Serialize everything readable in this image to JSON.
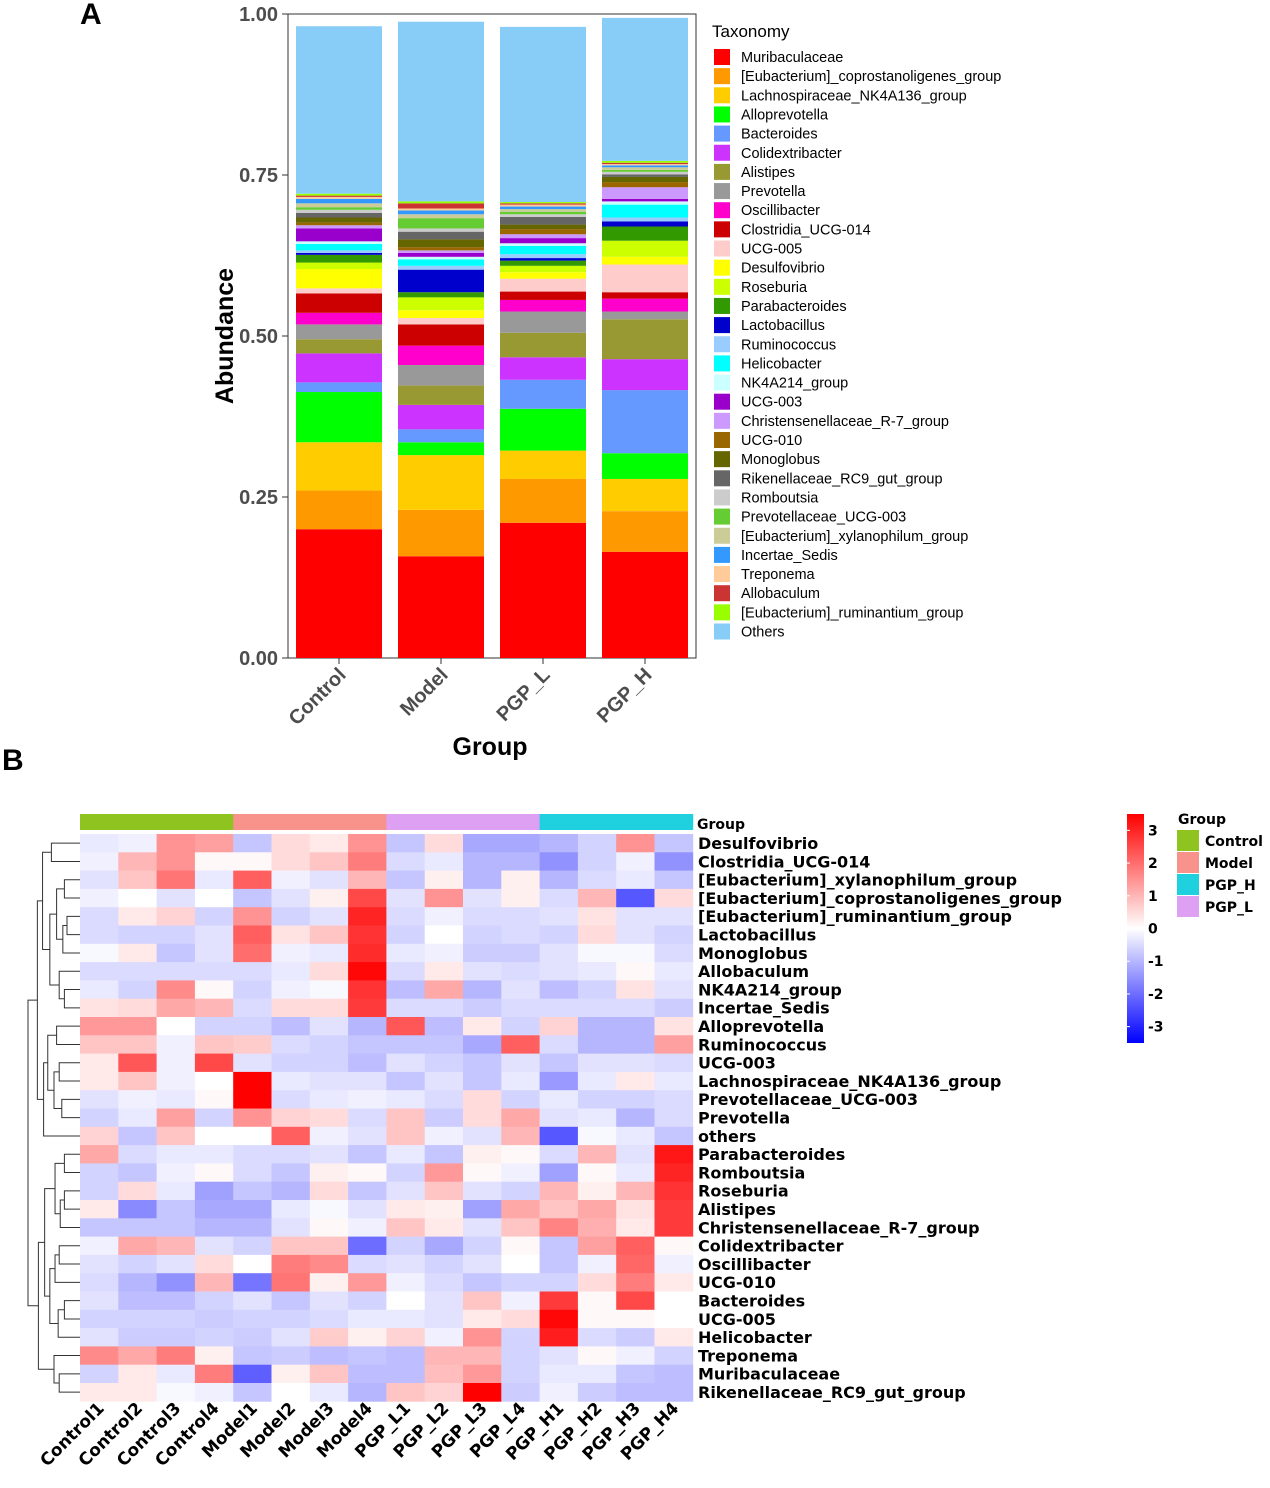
{
  "chart_data": [
    {
      "panel": "A",
      "type": "bar",
      "stacked": true,
      "xlabel": "Group",
      "ylabel": "Abundance",
      "ylim": [
        0,
        1
      ],
      "yticks": [
        "0.00",
        "0.25",
        "0.50",
        "0.75",
        "1.00"
      ],
      "categories": [
        "Control",
        "Model",
        "PGP_L",
        "PGP_H"
      ],
      "legend_title": "Taxonomy",
      "legend_position": "right",
      "series": [
        {
          "name": "Muribaculaceae",
          "color": "#FF0000",
          "values": [
            0.2,
            0.158,
            0.21,
            0.165
          ]
        },
        {
          "name": "[Eubacterium]_coprostanoligenes_group",
          "color": "#FF9900",
          "values": [
            0.06,
            0.072,
            0.068,
            0.063
          ]
        },
        {
          "name": "Lachnospiraceae_NK4A136_group",
          "color": "#FFCC00",
          "values": [
            0.075,
            0.085,
            0.044,
            0.05
          ]
        },
        {
          "name": "Alloprevotella",
          "color": "#00FF00",
          "values": [
            0.078,
            0.02,
            0.065,
            0.04
          ]
        },
        {
          "name": "Bacteroides",
          "color": "#6699FF",
          "values": [
            0.015,
            0.02,
            0.045,
            0.098
          ]
        },
        {
          "name": "Colidextribacter",
          "color": "#CC33FF",
          "values": [
            0.045,
            0.038,
            0.035,
            0.048
          ]
        },
        {
          "name": "Alistipes",
          "color": "#999933",
          "values": [
            0.022,
            0.03,
            0.038,
            0.062
          ]
        },
        {
          "name": "Prevotella",
          "color": "#999999",
          "values": [
            0.023,
            0.032,
            0.033,
            0.012
          ]
        },
        {
          "name": "Oscillibacter",
          "color": "#FF00CC",
          "values": [
            0.018,
            0.03,
            0.018,
            0.02
          ]
        },
        {
          "name": "Clostridia_UCG-014",
          "color": "#CC0000",
          "values": [
            0.03,
            0.033,
            0.013,
            0.01
          ]
        },
        {
          "name": "UCG-005",
          "color": "#FFCCCC",
          "values": [
            0.008,
            0.01,
            0.02,
            0.043
          ]
        },
        {
          "name": "Desulfovibrio",
          "color": "#FFFF00",
          "values": [
            0.03,
            0.012,
            0.01,
            0.012
          ]
        },
        {
          "name": "Roseburia",
          "color": "#CCFF00",
          "values": [
            0.01,
            0.02,
            0.01,
            0.025
          ]
        },
        {
          "name": "Parabacteroides",
          "color": "#339900",
          "values": [
            0.012,
            0.008,
            0.008,
            0.022
          ]
        },
        {
          "name": "Lactobacillus",
          "color": "#0000CC",
          "values": [
            0.003,
            0.035,
            0.004,
            0.008
          ]
        },
        {
          "name": "Ruminococcus",
          "color": "#99CCFF",
          "values": [
            0.004,
            0.006,
            0.006,
            0.006
          ]
        },
        {
          "name": "Helicobacter",
          "color": "#00FFFF",
          "values": [
            0.01,
            0.01,
            0.013,
            0.02
          ]
        },
        {
          "name": "NK4A214_group",
          "color": "#CCFFFF",
          "values": [
            0.004,
            0.004,
            0.004,
            0.005
          ]
        },
        {
          "name": "UCG-003",
          "color": "#9900CC",
          "values": [
            0.02,
            0.006,
            0.008,
            0.004
          ]
        },
        {
          "name": "Christensenellaceae_R-7_group",
          "color": "#CC99FF",
          "values": [
            0.005,
            0.004,
            0.006,
            0.018
          ]
        },
        {
          "name": "UCG-010",
          "color": "#996600",
          "values": [
            0.004,
            0.005,
            0.008,
            0.008
          ]
        },
        {
          "name": "Monoglobus",
          "color": "#666600",
          "values": [
            0.008,
            0.012,
            0.007,
            0.008
          ]
        },
        {
          "name": "Rikenellaceae_RC9_gut_group",
          "color": "#666666",
          "values": [
            0.007,
            0.012,
            0.012,
            0.004
          ]
        },
        {
          "name": "Romboutsia",
          "color": "#CCCCCC",
          "values": [
            0.005,
            0.005,
            0.004,
            0.004
          ]
        },
        {
          "name": "Prevotellaceae_UCG-003",
          "color": "#66CC33",
          "values": [
            0.004,
            0.016,
            0.004,
            0.003
          ]
        },
        {
          "name": "[Eubacterium]_xylanophilum_group",
          "color": "#CCCC99",
          "values": [
            0.006,
            0.006,
            0.004,
            0.004
          ]
        },
        {
          "name": "Incertae_Sedis",
          "color": "#3399FF",
          "values": [
            0.007,
            0.006,
            0.004,
            0.003
          ]
        },
        {
          "name": "Treponema",
          "color": "#FFCC99",
          "values": [
            0.003,
            0.003,
            0.003,
            0.002
          ]
        },
        {
          "name": "Allobaculum",
          "color": "#CC3333",
          "values": [
            0.002,
            0.008,
            0.002,
            0.002
          ]
        },
        {
          "name": "[Eubacterium]_ruminantium_group",
          "color": "#99FF00",
          "values": [
            0.003,
            0.003,
            0.002,
            0.003
          ]
        },
        {
          "name": "Others",
          "color": "#88CCF8",
          "values": [
            0.26,
            0.279,
            0.272,
            0.222
          ]
        }
      ]
    },
    {
      "panel": "B",
      "type": "heatmap",
      "columns": [
        "Control1",
        "Control2",
        "Control3",
        "Control4",
        "Model1",
        "Model2",
        "Model3",
        "Model4",
        "PGP_L1",
        "PGP_L2",
        "PGP_L3",
        "PGP_L4",
        "PGP_H1",
        "PGP_H2",
        "PGP_H3",
        "PGP_H4"
      ],
      "column_groups": [
        "Control",
        "Control",
        "Control",
        "Control",
        "Model",
        "Model",
        "Model",
        "Model",
        "PGP_L",
        "PGP_L",
        "PGP_L",
        "PGP_L",
        "PGP_H",
        "PGP_H",
        "PGP_H",
        "PGP_H"
      ],
      "group_annotation_label": "Group",
      "group_legend": {
        "title": "Group",
        "items": [
          {
            "name": "Control",
            "color": "#8FC31F"
          },
          {
            "name": "Model",
            "color": "#F8938B"
          },
          {
            "name": "PGP_H",
            "color": "#1FD1DE"
          },
          {
            "name": "PGP_L",
            "color": "#DDA0F2"
          }
        ]
      },
      "color_scale": {
        "min": -3.5,
        "max": 3.5,
        "ticks": [
          "3",
          "2",
          "1",
          "0",
          "-1",
          "-2",
          "-3"
        ],
        "low": "#0000FF",
        "mid": "#FFFFFF",
        "high": "#FF0000"
      },
      "rows": [
        {
          "name": "Desulfovibrio",
          "values": [
            -0.3,
            -0.2,
            1.5,
            1.3,
            -0.8,
            0.5,
            0.3,
            1.5,
            -0.8,
            0.5,
            -1.2,
            -1.2,
            -1.0,
            -0.6,
            1.5,
            -0.8
          ]
        },
        {
          "name": "Clostridia_UCG-014",
          "values": [
            -0.2,
            1.0,
            1.5,
            0.1,
            0.1,
            0.5,
            0.8,
            1.8,
            -0.5,
            -0.3,
            -1.0,
            -1.0,
            -1.5,
            -0.6,
            -0.2,
            -1.5
          ]
        },
        {
          "name": "[Eubacterium]_xylanophilum_group",
          "values": [
            -0.4,
            0.8,
            1.9,
            -0.3,
            2.2,
            -0.2,
            -0.4,
            1.0,
            -0.8,
            0.2,
            -1.0,
            0.2,
            -1.0,
            -0.5,
            -0.3,
            -0.8
          ]
        },
        {
          "name": "[Eubacterium]_coprostanoligenes_group",
          "values": [
            -0.2,
            0.0,
            -0.4,
            0.0,
            -0.8,
            -0.4,
            0.2,
            2.5,
            -0.4,
            1.5,
            -0.4,
            0.2,
            -0.5,
            1.0,
            -2.3,
            0.5
          ]
        },
        {
          "name": "[Eubacterium]_ruminantium_group",
          "values": [
            -0.5,
            0.3,
            0.6,
            -0.6,
            1.5,
            -0.6,
            -0.4,
            3.0,
            -0.5,
            -0.2,
            -0.5,
            -0.5,
            -0.4,
            0.4,
            -0.4,
            -0.4
          ]
        },
        {
          "name": "Lactobacillus",
          "values": [
            -0.5,
            -0.6,
            -0.6,
            -0.4,
            2.2,
            0.4,
            0.8,
            2.8,
            -0.6,
            0.0,
            -0.6,
            -0.5,
            -0.6,
            0.5,
            -0.4,
            -0.6
          ]
        },
        {
          "name": "Monoglobus",
          "values": [
            -0.1,
            0.3,
            -0.8,
            -0.4,
            2.0,
            -0.2,
            -0.3,
            2.9,
            -0.3,
            -0.2,
            -0.7,
            -0.7,
            -0.4,
            -0.1,
            -0.1,
            -0.5
          ]
        },
        {
          "name": "Allobaculum",
          "values": [
            -0.5,
            -0.5,
            -0.5,
            -0.5,
            -0.5,
            -0.3,
            0.5,
            3.4,
            -0.5,
            0.3,
            -0.4,
            -0.5,
            -0.4,
            -0.3,
            0.1,
            -0.3
          ]
        },
        {
          "name": "NK4A214_group",
          "values": [
            -0.3,
            -0.6,
            1.6,
            0.1,
            -0.6,
            -0.2,
            -0.1,
            2.8,
            -0.9,
            1.2,
            -1.0,
            -0.4,
            -0.9,
            -0.6,
            0.4,
            -0.4
          ]
        },
        {
          "name": "Incertae_Sedis",
          "values": [
            0.4,
            0.5,
            1.2,
            1.0,
            -0.5,
            0.5,
            0.5,
            2.7,
            -0.5,
            -0.5,
            -0.7,
            -0.5,
            -0.5,
            -0.5,
            -0.5,
            -0.7
          ]
        },
        {
          "name": "Alloprevotella",
          "values": [
            1.4,
            1.4,
            0.0,
            -0.6,
            -0.6,
            -0.9,
            -0.4,
            -1.0,
            2.3,
            -0.9,
            0.3,
            -0.6,
            0.6,
            -1.0,
            -1.0,
            0.4
          ]
        },
        {
          "name": "Ruminococcus",
          "values": [
            0.8,
            0.8,
            -0.2,
            0.8,
            0.7,
            -0.5,
            -0.6,
            -0.8,
            -0.8,
            -0.8,
            -1.2,
            2.2,
            -0.5,
            -1.0,
            -1.0,
            1.3
          ]
        },
        {
          "name": "UCG-003",
          "values": [
            0.3,
            2.3,
            -0.2,
            2.5,
            -0.4,
            -0.6,
            -0.6,
            -0.9,
            -0.4,
            -0.6,
            -0.8,
            -0.4,
            -0.8,
            -0.4,
            -0.4,
            -0.5
          ]
        },
        {
          "name": "Lachnospiraceae_NK4A136_group",
          "values": [
            0.3,
            0.8,
            -0.2,
            0.0,
            3.5,
            -0.3,
            -0.4,
            -0.4,
            -0.8,
            -0.4,
            -0.8,
            -0.3,
            -1.4,
            -0.3,
            0.3,
            -0.3
          ]
        },
        {
          "name": "Prevotellaceae_UCG-003",
          "values": [
            -0.4,
            -0.2,
            -0.3,
            0.1,
            3.5,
            -0.5,
            -0.3,
            -0.2,
            -0.3,
            -0.5,
            0.5,
            -0.6,
            -0.3,
            -0.6,
            -0.6,
            -0.5
          ]
        },
        {
          "name": "Prevotella",
          "values": [
            -0.6,
            -0.3,
            1.3,
            -0.6,
            1.5,
            0.6,
            0.5,
            -0.5,
            0.8,
            -0.7,
            0.5,
            1.2,
            -0.4,
            -0.3,
            -1.0,
            -0.5
          ]
        },
        {
          "name": "others",
          "values": [
            0.6,
            -0.8,
            0.8,
            0.0,
            0.0,
            2.2,
            -0.2,
            -0.4,
            0.8,
            -0.2,
            -0.4,
            1.0,
            -2.3,
            -0.1,
            -0.3,
            -0.8
          ]
        },
        {
          "name": "Parabacteroides",
          "values": [
            1.2,
            -0.5,
            -0.3,
            -0.3,
            -0.5,
            -0.5,
            -0.4,
            -0.8,
            -0.3,
            -0.8,
            0.2,
            0.1,
            -0.5,
            1.0,
            -0.4,
            3.2
          ]
        },
        {
          "name": "Romboutsia",
          "values": [
            -0.6,
            -0.8,
            -0.2,
            0.1,
            -0.5,
            -0.8,
            0.2,
            0.1,
            -0.6,
            1.4,
            0.1,
            -0.2,
            -1.3,
            0.1,
            -0.3,
            3.0
          ]
        },
        {
          "name": "Roseburia",
          "values": [
            -0.6,
            0.5,
            -0.3,
            -1.3,
            -0.8,
            -1.0,
            0.5,
            -0.8,
            -0.4,
            0.8,
            -0.4,
            -0.6,
            1.0,
            0.2,
            1.0,
            2.8
          ]
        },
        {
          "name": "Alistipes",
          "values": [
            0.3,
            -1.6,
            -0.8,
            -1.2,
            -1.2,
            -0.3,
            -0.1,
            -0.4,
            0.3,
            0.2,
            -1.3,
            1.2,
            0.8,
            1.2,
            0.4,
            2.7
          ]
        },
        {
          "name": "Christensenellaceae_R-7_group",
          "values": [
            -0.8,
            -0.8,
            -0.8,
            -1.0,
            -1.0,
            -0.4,
            0.1,
            -0.2,
            0.8,
            0.3,
            -0.4,
            0.8,
            1.7,
            1.1,
            0.3,
            2.7
          ]
        },
        {
          "name": "Colidextribacter",
          "values": [
            -0.2,
            1.2,
            1.0,
            -0.4,
            -0.6,
            0.8,
            0.8,
            -2.0,
            -0.6,
            -1.2,
            -0.6,
            0.1,
            -0.8,
            1.3,
            2.2,
            0.1
          ]
        },
        {
          "name": "Oscillibacter",
          "values": [
            -0.4,
            -0.6,
            -0.4,
            0.5,
            0.0,
            1.8,
            1.6,
            -0.5,
            -0.4,
            -0.6,
            -0.4,
            0.0,
            -0.8,
            -0.2,
            2.1,
            -0.2
          ]
        },
        {
          "name": "UCG-010",
          "values": [
            -0.5,
            -1.0,
            -1.5,
            1.0,
            -1.9,
            1.9,
            0.2,
            1.4,
            -0.2,
            -0.5,
            -0.8,
            -0.6,
            -0.6,
            0.5,
            1.8,
            0.3
          ]
        },
        {
          "name": "Bacteroides",
          "values": [
            -0.4,
            -0.9,
            -0.9,
            -0.6,
            -0.4,
            -0.8,
            -0.4,
            -0.6,
            0.0,
            -0.4,
            0.8,
            -0.2,
            2.7,
            0.1,
            2.5,
            0.0
          ]
        },
        {
          "name": "UCG-005",
          "values": [
            -0.6,
            -0.6,
            -0.6,
            -0.7,
            -0.6,
            -0.6,
            -0.5,
            -0.3,
            -0.3,
            -0.4,
            0.3,
            0.5,
            3.4,
            0.1,
            0.1,
            0.0
          ]
        },
        {
          "name": "Helicobacter",
          "values": [
            -0.4,
            -0.7,
            -0.7,
            -0.6,
            -0.7,
            -0.4,
            0.7,
            0.2,
            0.6,
            -0.2,
            1.5,
            -0.6,
            3.1,
            -0.5,
            -0.7,
            0.3
          ]
        },
        {
          "name": "Treponema",
          "values": [
            1.6,
            1.2,
            1.8,
            0.2,
            -0.8,
            -0.7,
            -0.9,
            -0.8,
            -0.9,
            1.0,
            1.0,
            -0.6,
            -0.4,
            0.1,
            -0.2,
            -0.6
          ]
        },
        {
          "name": "Muribaculaceae",
          "values": [
            -0.6,
            0.3,
            -0.3,
            1.8,
            -2.2,
            0.2,
            0.8,
            -0.9,
            -0.9,
            0.9,
            1.4,
            -0.6,
            -0.3,
            -0.3,
            -0.8,
            -0.9
          ]
        },
        {
          "name": "Rikenellaceae_RC9_gut_group",
          "values": [
            0.3,
            0.3,
            -0.1,
            -0.2,
            -0.8,
            0.0,
            -0.3,
            -1.0,
            0.8,
            0.6,
            3.5,
            -0.7,
            -0.2,
            -0.7,
            -0.9,
            -0.9
          ]
        }
      ]
    }
  ],
  "panel_labels": {
    "a": "A",
    "b": "B"
  }
}
